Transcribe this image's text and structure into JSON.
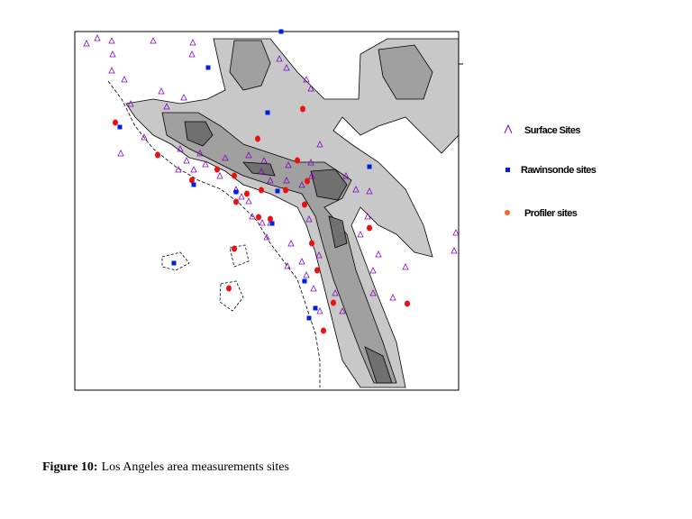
{
  "legend": {
    "items": [
      "Surface Sites",
      "Rawinsonde sites",
      "Profiler sites"
    ]
  },
  "caption": {
    "label": "Figure 10:",
    "text": "Los Angeles area measurements sites"
  }
}
